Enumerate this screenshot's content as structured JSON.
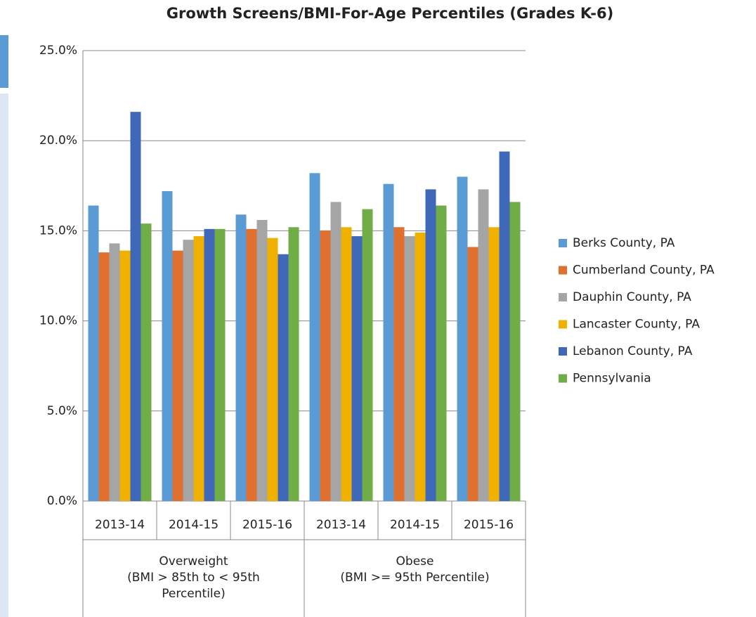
{
  "chart_data": {
    "type": "bar",
    "title": "Growth Screens/BMI-For-Age Percentiles (Grades K-6)",
    "categories": [
      "2013-14",
      "2014-15",
      "2015-16",
      "2013-14",
      "2014-15",
      "2015-16"
    ],
    "groups": [
      {
        "label": "Overweight\n(BMI > 85th to < 95th Percentile)",
        "size": 3
      },
      {
        "label": "Obese\n(BMI >= 95th Percentile)",
        "size": 3
      }
    ],
    "series": [
      {
        "name": "Berks County, PA",
        "color": "#5b9bd5",
        "values": [
          16.4,
          17.2,
          15.9,
          18.2,
          17.6,
          18.0
        ]
      },
      {
        "name": "Cumberland County, PA",
        "color": "#e07030",
        "values": [
          13.8,
          13.9,
          15.1,
          15.0,
          15.2,
          14.1
        ]
      },
      {
        "name": "Dauphin County, PA",
        "color": "#a5a5a5",
        "values": [
          14.3,
          14.5,
          15.6,
          16.6,
          14.7,
          17.3
        ]
      },
      {
        "name": "Lancaster County, PA",
        "color": "#f0b000",
        "values": [
          13.9,
          14.7,
          14.6,
          15.2,
          14.9,
          15.2
        ]
      },
      {
        "name": "Lebanon County, PA",
        "color": "#4068b8",
        "values": [
          21.6,
          15.1,
          13.7,
          14.7,
          17.3,
          19.4
        ]
      },
      {
        "name": "Pennsylvania",
        "color": "#70ad47",
        "values": [
          15.4,
          15.1,
          15.2,
          16.2,
          16.4,
          16.6
        ]
      }
    ],
    "ylim": [
      0,
      25
    ],
    "yticks": [
      {
        "value": 0,
        "label": "0.0%"
      },
      {
        "value": 5,
        "label": "5.0%"
      },
      {
        "value": 10,
        "label": "10.0%"
      },
      {
        "value": 15,
        "label": "15.0%"
      },
      {
        "value": 20,
        "label": "20.0%"
      },
      {
        "value": 25,
        "label": "25.0%"
      }
    ],
    "grid": true,
    "legend": "right"
  }
}
